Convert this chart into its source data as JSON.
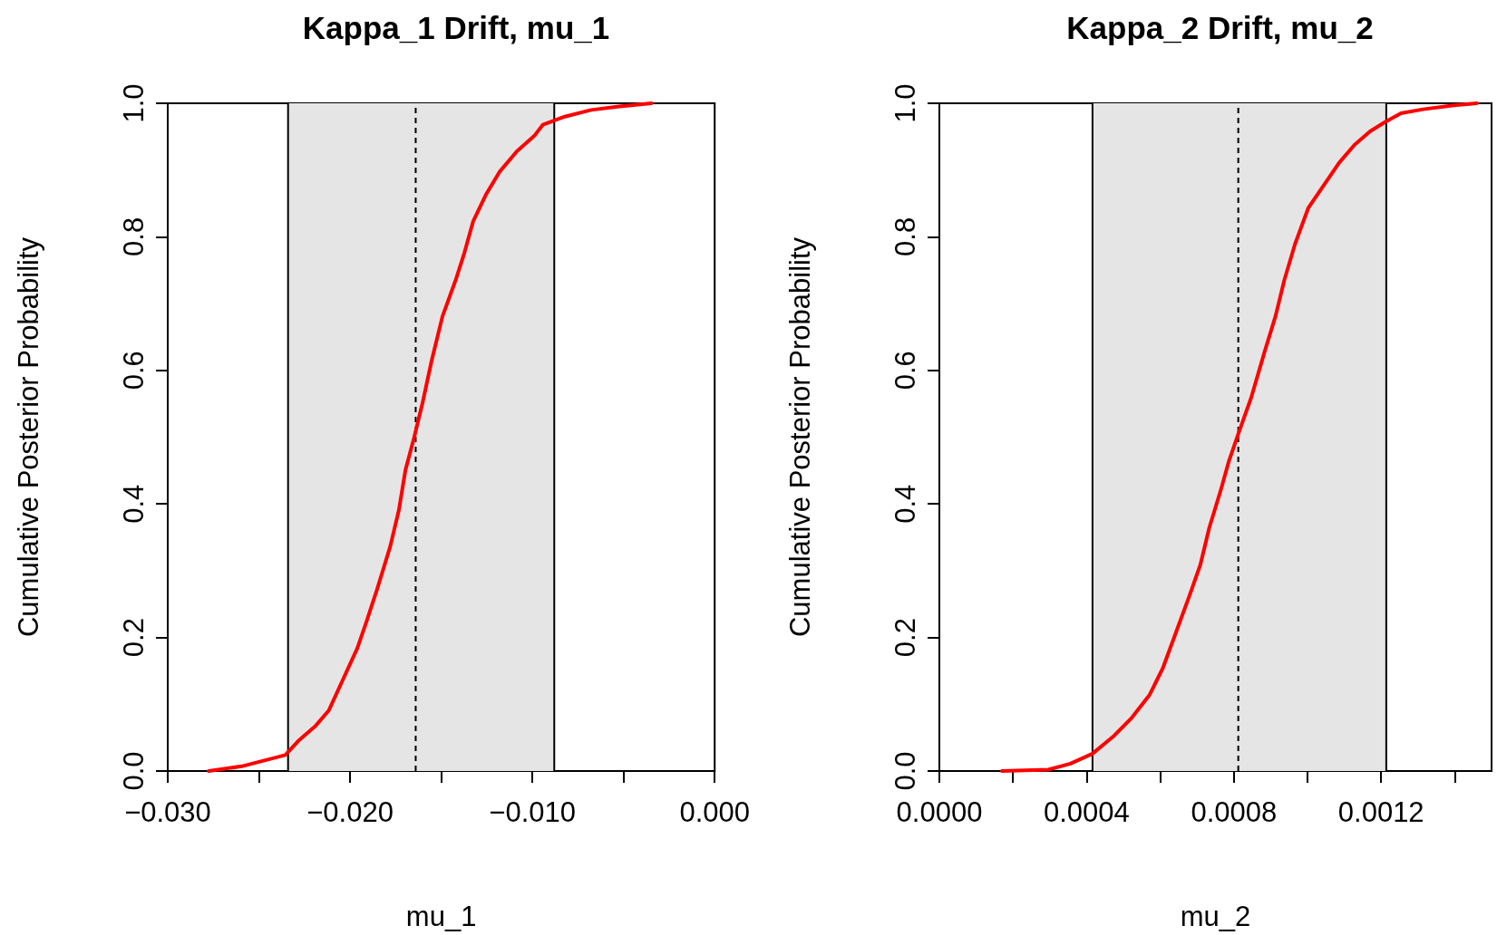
{
  "chart_data": [
    {
      "type": "line",
      "title": "Kappa_1 Drift, mu_1",
      "xlabel": "mu_1",
      "ylabel": "Cumulative Posterior Probability",
      "marker": "none",
      "xlim": [
        -0.03,
        0.0
      ],
      "xticks": [
        {
          "value": -0.03,
          "label": "−0.030"
        },
        {
          "value": -0.025,
          "label": null
        },
        {
          "value": -0.02,
          "label": "−0.020"
        },
        {
          "value": -0.015,
          "label": null
        },
        {
          "value": -0.01,
          "label": "−0.010"
        },
        {
          "value": -0.005,
          "label": null
        },
        {
          "value": 0,
          "label": "0.000"
        }
      ],
      "ylim": [
        0,
        1
      ],
      "yticks": [
        {
          "value": 0,
          "label": "0.0"
        },
        {
          "value": 0.2,
          "label": "0.2"
        },
        {
          "value": 0.4,
          "label": "0.4"
        },
        {
          "value": 0.6,
          "label": "0.6"
        },
        {
          "value": 0.8,
          "label": "0.8"
        },
        {
          "value": 1,
          "label": "1.0"
        }
      ],
      "bands": [
        {
          "axis": "x",
          "from": -0.0234,
          "to": -0.0088,
          "color": "#e5e5e5"
        }
      ],
      "ref_lines": [
        {
          "axis": "x",
          "value": -0.0234,
          "line_style": "solid",
          "color": "#000000"
        },
        {
          "axis": "x",
          "value": -0.0088,
          "line_style": "solid",
          "color": "#000000"
        },
        {
          "axis": "x",
          "value": -0.0164,
          "line_style": "dashed",
          "color": "#000000"
        }
      ],
      "series": [
        {
          "color": "#ff0000",
          "x": [
            -0.02775,
            -0.02595,
            -0.02355,
            -0.02284,
            -0.02188,
            -0.02116,
            -0.02044,
            -0.0196,
            -0.01912,
            -0.01852,
            -0.0178,
            -0.01732,
            -0.01696,
            -0.01649,
            -0.01601,
            -0.01553,
            -0.01493,
            -0.01421,
            -0.01373,
            -0.01325,
            -0.01253,
            -0.01181,
            -0.01085,
            -0.0099,
            -0.00942,
            -0.00822,
            -0.00678,
            -0.00534,
            -0.00347
          ],
          "values": [
            0,
            0.007,
            0.024,
            0.045,
            0.068,
            0.091,
            0.134,
            0.184,
            0.222,
            0.272,
            0.336,
            0.391,
            0.451,
            0.499,
            0.553,
            0.614,
            0.681,
            0.735,
            0.776,
            0.823,
            0.864,
            0.897,
            0.928,
            0.951,
            0.968,
            0.98,
            0.99,
            0.995,
            1.0
          ]
        }
      ]
    },
    {
      "type": "line",
      "title": "Kappa_2 Drift, mu_2",
      "xlabel": "mu_2",
      "ylabel": "Cumulative Posterior Probability",
      "marker": "none",
      "xlim": [
        0,
        0.0015
      ],
      "xticks": [
        {
          "value": 0,
          "label": "0.0000"
        },
        {
          "value": 0.0002,
          "label": null
        },
        {
          "value": 0.0004,
          "label": "0.0004"
        },
        {
          "value": 0.0006,
          "label": null
        },
        {
          "value": 0.0008,
          "label": "0.0008"
        },
        {
          "value": 0.001,
          "label": null
        },
        {
          "value": 0.0012,
          "label": "0.0012"
        },
        {
          "value": 0.0014,
          "label": null
        }
      ],
      "ylim": [
        0,
        1
      ],
      "yticks": [
        {
          "value": 0,
          "label": "0.0"
        },
        {
          "value": 0.2,
          "label": "0.2"
        },
        {
          "value": 0.4,
          "label": "0.4"
        },
        {
          "value": 0.6,
          "label": "0.6"
        },
        {
          "value": 0.8,
          "label": "0.8"
        },
        {
          "value": 1,
          "label": "1.0"
        }
      ],
      "bands": [
        {
          "axis": "x",
          "from": 0.000416,
          "to": 0.001214,
          "color": "#e5e5e5"
        }
      ],
      "ref_lines": [
        {
          "axis": "x",
          "value": 0.000416,
          "line_style": "solid",
          "color": "#000000"
        },
        {
          "axis": "x",
          "value": 0.001214,
          "line_style": "solid",
          "color": "#000000"
        },
        {
          "axis": "x",
          "value": 0.000812,
          "line_style": "dashed",
          "color": "#000000"
        }
      ],
      "series": [
        {
          "color": "#ff0000",
          "x": [
            0.00017,
            0.000296,
            0.000356,
            0.000416,
            0.000475,
            0.000523,
            0.000571,
            0.000607,
            0.000643,
            0.000679,
            0.000709,
            0.000733,
            0.000763,
            0.000787,
            0.000812,
            0.000847,
            0.000883,
            0.000913,
            0.000937,
            0.000966,
            0.001002,
            0.001044,
            0.001086,
            0.001128,
            0.00117,
            0.001214,
            0.001254,
            0.001314,
            0.001398,
            0.00146
          ],
          "values": [
            0,
            0.002,
            0.011,
            0.026,
            0.053,
            0.08,
            0.114,
            0.154,
            0.208,
            0.262,
            0.309,
            0.364,
            0.418,
            0.465,
            0.505,
            0.559,
            0.627,
            0.681,
            0.735,
            0.789,
            0.843,
            0.877,
            0.911,
            0.938,
            0.958,
            0.973,
            0.985,
            0.991,
            0.997,
            1.0
          ]
        }
      ]
    }
  ]
}
